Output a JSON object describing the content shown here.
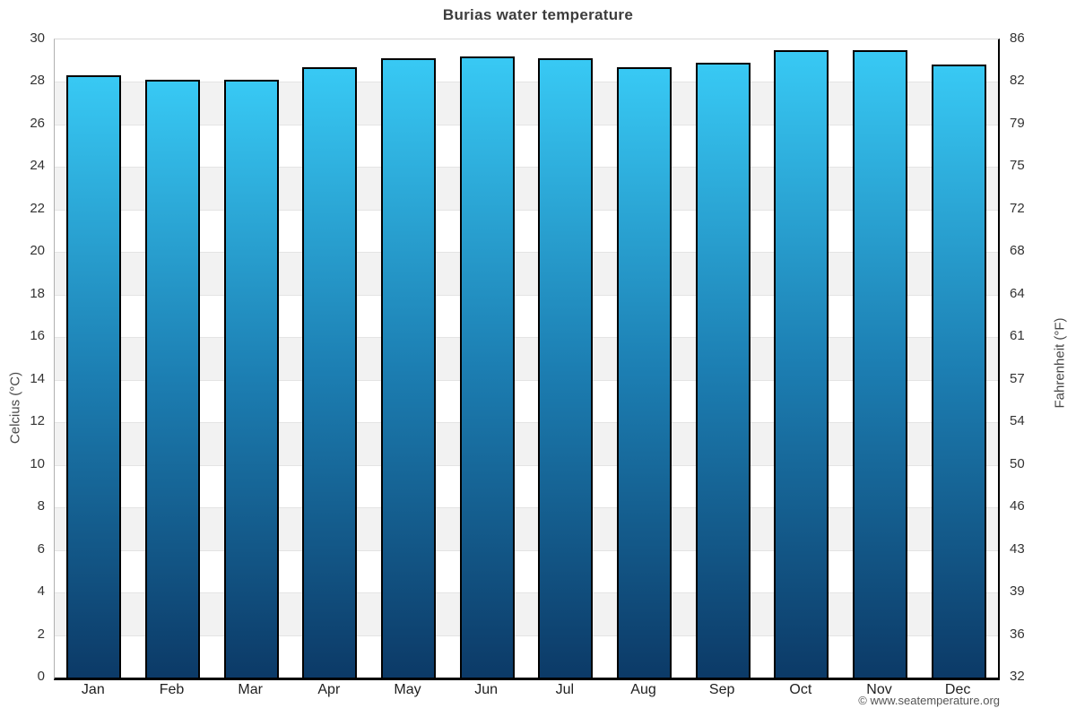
{
  "title": "Burias water temperature",
  "footer": "© www.seatemperature.org",
  "axes": {
    "left_title": "Celcius (°C)",
    "right_title": "Fahrenheit (°F)"
  },
  "chart_data": {
    "type": "bar",
    "title": "Burias water temperature",
    "categories": [
      "Jan",
      "Feb",
      "Mar",
      "Apr",
      "May",
      "Jun",
      "Jul",
      "Aug",
      "Sep",
      "Oct",
      "Nov",
      "Dec"
    ],
    "values": [
      28.3,
      28.1,
      28.1,
      28.7,
      29.1,
      29.2,
      29.1,
      28.7,
      28.9,
      29.5,
      29.5,
      28.8
    ],
    "xlabel": "",
    "ylabel_left": "Celcius (°C)",
    "ylabel_right": "Fahrenheit (°F)",
    "ylim": [
      0,
      30
    ],
    "celsius_ticks": [
      0,
      2,
      4,
      6,
      8,
      10,
      12,
      14,
      16,
      18,
      20,
      22,
      24,
      26,
      28,
      30
    ],
    "fahrenheit_ticks": [
      32,
      36,
      39,
      43,
      46,
      50,
      54,
      57,
      61,
      64,
      68,
      72,
      75,
      79,
      82,
      86
    ],
    "grid": "horizontal-bands",
    "legend": "none",
    "colors": {
      "bar_gradient_top": "#38c9f4",
      "bar_gradient_mid": "#1c7eb2",
      "bar_gradient_bottom": "#0c3a67",
      "bar_border": "#000000",
      "band_gray": "#f2f2f2",
      "band_white": "#ffffff",
      "gridline": "#e4e4e4",
      "axis_bottom": "#000000",
      "title_text": "#3d3d3d"
    }
  }
}
